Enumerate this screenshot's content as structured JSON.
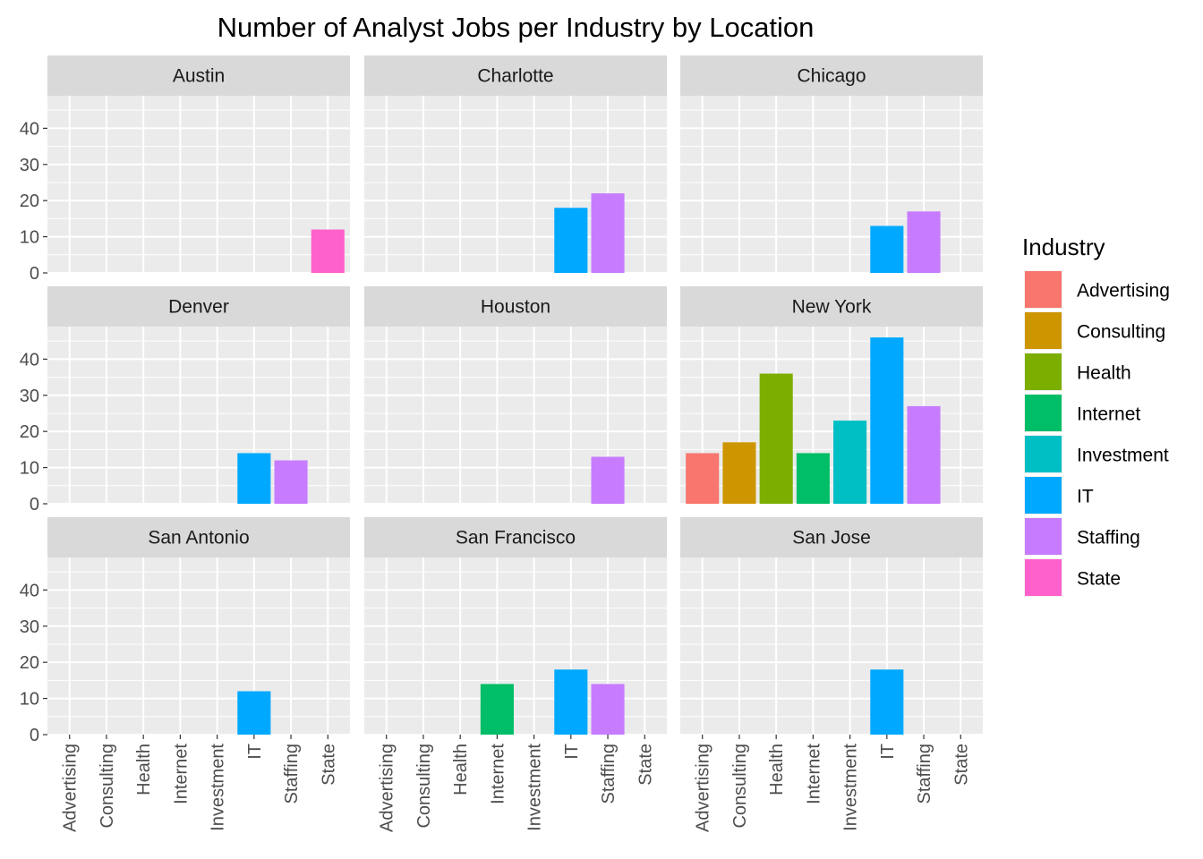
{
  "chart_data": {
    "type": "bar",
    "title": "Number of Analyst Jobs per Industry by Location",
    "xlabel": "",
    "ylabel": "",
    "ylim": [
      0,
      49
    ],
    "y_ticks": [
      0,
      10,
      20,
      30,
      40
    ],
    "grid": true,
    "facet_layout": "3x3",
    "categories": [
      "Advertising",
      "Consulting",
      "Health",
      "Internet",
      "Investment",
      "IT",
      "Staffing",
      "State"
    ],
    "legend": {
      "title": "Industry",
      "position": "right",
      "items": [
        {
          "label": "Advertising",
          "color": "#F8766D"
        },
        {
          "label": "Consulting",
          "color": "#CD9600"
        },
        {
          "label": "Health",
          "color": "#7CAE00"
        },
        {
          "label": "Internet",
          "color": "#00BE67"
        },
        {
          "label": "Investment",
          "color": "#00BFC4"
        },
        {
          "label": "IT",
          "color": "#00A9FF"
        },
        {
          "label": "Staffing",
          "color": "#C77CFF"
        },
        {
          "label": "State",
          "color": "#FF61CC"
        }
      ]
    },
    "panels": [
      {
        "name": "Austin",
        "bars": [
          {
            "category": "State",
            "value": 12
          }
        ]
      },
      {
        "name": "Charlotte",
        "bars": [
          {
            "category": "IT",
            "value": 18
          },
          {
            "category": "Staffing",
            "value": 22
          }
        ]
      },
      {
        "name": "Chicago",
        "bars": [
          {
            "category": "IT",
            "value": 13
          },
          {
            "category": "Staffing",
            "value": 17
          }
        ]
      },
      {
        "name": "Denver",
        "bars": [
          {
            "category": "IT",
            "value": 14
          },
          {
            "category": "Staffing",
            "value": 12
          }
        ]
      },
      {
        "name": "Houston",
        "bars": [
          {
            "category": "Staffing",
            "value": 13
          }
        ]
      },
      {
        "name": "New York",
        "bars": [
          {
            "category": "Advertising",
            "value": 14
          },
          {
            "category": "Consulting",
            "value": 17
          },
          {
            "category": "Health",
            "value": 36
          },
          {
            "category": "Internet",
            "value": 14
          },
          {
            "category": "Investment",
            "value": 23
          },
          {
            "category": "IT",
            "value": 46
          },
          {
            "category": "Staffing",
            "value": 27
          }
        ]
      },
      {
        "name": "San Antonio",
        "bars": [
          {
            "category": "IT",
            "value": 12
          }
        ]
      },
      {
        "name": "San Francisco",
        "bars": [
          {
            "category": "Internet",
            "value": 14
          },
          {
            "category": "IT",
            "value": 18
          },
          {
            "category": "Staffing",
            "value": 14
          }
        ]
      },
      {
        "name": "San Jose",
        "bars": [
          {
            "category": "IT",
            "value": 18
          }
        ]
      }
    ]
  }
}
